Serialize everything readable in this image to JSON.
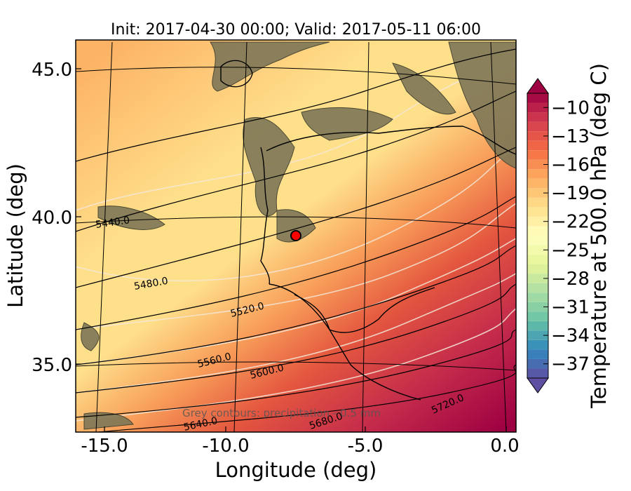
{
  "chart_data": {
    "type": "heatmap",
    "title": "Init: 2017-04-30 00:00; Valid: 2017-05-11 06:00",
    "xlabel": "Longitude (deg)",
    "ylabel": "Latitude (deg)",
    "x_ticks": [
      "-15.0",
      "-10.0",
      "-5.0",
      "0.0"
    ],
    "y_ticks": [
      "45.0",
      "40.0",
      "35.0"
    ],
    "xlim": [
      -15.9,
      0.3
    ],
    "ylim": [
      32.6,
      46.0
    ],
    "field": "Temperature at 500.0 hPa (deg C)",
    "colorbar": {
      "label": "Temperature at 500.0 hPa (deg C)",
      "ticks": [
        "−10",
        "−13",
        "−16",
        "−19",
        "−22",
        "−25",
        "−28",
        "−31",
        "−34",
        "−37"
      ],
      "range": [
        -38.5,
        -8.5
      ],
      "colormap": "Spectral",
      "extend": "both"
    },
    "height_contours": {
      "labels": [
        "5440.0",
        "5480.0",
        "5520.0",
        "5560.0",
        "5600.0",
        "5640.0",
        "5680.0",
        "5720.0"
      ],
      "color": "#000000"
    },
    "note": "Grey contours: precipitation - 0.5 mm",
    "marker": {
      "lon": -7.7,
      "lat": 39.3,
      "color": "#ff0000"
    },
    "grid": true
  }
}
